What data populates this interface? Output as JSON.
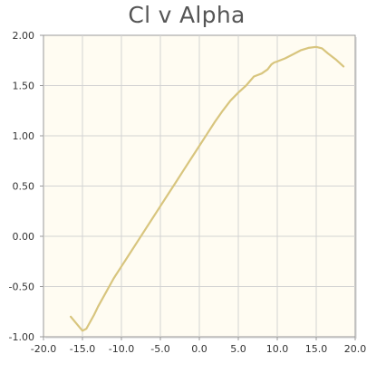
{
  "chart_data": {
    "type": "line",
    "title": "Cl v Alpha",
    "xlabel": "",
    "ylabel": "",
    "xlim": [
      -20,
      20
    ],
    "ylim": [
      -1,
      2
    ],
    "x_ticks": [
      "-20.0",
      "-15.0",
      "-10.0",
      "-5.0",
      "0.0",
      "5.0",
      "10.0",
      "15.0",
      "20.0"
    ],
    "y_ticks": [
      "2.00",
      "1.50",
      "1.00",
      "0.50",
      "0.00",
      "-0.50",
      "-1.00"
    ],
    "grid": true,
    "colors": {
      "line": "#d8c57e",
      "plot_background": "#fffcf2",
      "grid": "#d3d3d3",
      "axis": "#999999"
    },
    "series": [
      {
        "x": [
          -16.5,
          -15.75,
          -15.0,
          -14.5,
          -14.0,
          -13.5,
          -13.0,
          -12.0,
          -11.0,
          -10.0,
          -9.0,
          -8.0,
          -7.0,
          -6.0,
          -5.0,
          -4.0,
          -3.0,
          -2.0,
          -1.0,
          0.0,
          1.0,
          2.0,
          3.0,
          4.0,
          5.0,
          6.0,
          7.0,
          8.0,
          8.75,
          9.25,
          9.6,
          10.0,
          11.0,
          12.0,
          13.0,
          14.0,
          15.0,
          15.75,
          16.5,
          17.5,
          18.5
        ],
        "y": [
          -0.8,
          -0.87,
          -0.94,
          -0.92,
          -0.85,
          -0.78,
          -0.7,
          -0.56,
          -0.42,
          -0.3,
          -0.18,
          -0.06,
          0.06,
          0.18,
          0.3,
          0.42,
          0.54,
          0.66,
          0.78,
          0.9,
          1.02,
          1.14,
          1.25,
          1.35,
          1.43,
          1.5,
          1.59,
          1.62,
          1.66,
          1.71,
          1.73,
          1.74,
          1.77,
          1.81,
          1.85,
          1.875,
          1.885,
          1.87,
          1.82,
          1.76,
          1.69
        ]
      }
    ]
  }
}
